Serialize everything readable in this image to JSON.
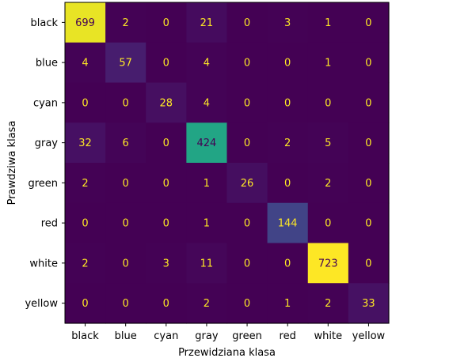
{
  "chart_data": {
    "type": "heatmap",
    "title": "",
    "xlabel": "Przewidziana klasa",
    "ylabel": "Prawdziwa klasa",
    "x_categories": [
      "black",
      "blue",
      "cyan",
      "gray",
      "green",
      "red",
      "white",
      "yellow"
    ],
    "y_categories": [
      "black",
      "blue",
      "cyan",
      "gray",
      "green",
      "red",
      "white",
      "yellow"
    ],
    "values": [
      [
        699,
        2,
        0,
        21,
        0,
        3,
        1,
        0
      ],
      [
        4,
        57,
        0,
        4,
        0,
        0,
        1,
        0
      ],
      [
        0,
        0,
        28,
        4,
        0,
        0,
        0,
        0
      ],
      [
        32,
        6,
        0,
        424,
        0,
        2,
        5,
        0
      ],
      [
        2,
        0,
        0,
        1,
        26,
        0,
        2,
        0
      ],
      [
        0,
        0,
        0,
        1,
        0,
        144,
        0,
        0
      ],
      [
        2,
        0,
        3,
        11,
        0,
        0,
        723,
        0
      ],
      [
        0,
        0,
        0,
        2,
        0,
        1,
        2,
        33
      ]
    ],
    "colormap": "viridis",
    "vmin": 0,
    "vmax": 723,
    "grid": false,
    "legend": "none"
  }
}
